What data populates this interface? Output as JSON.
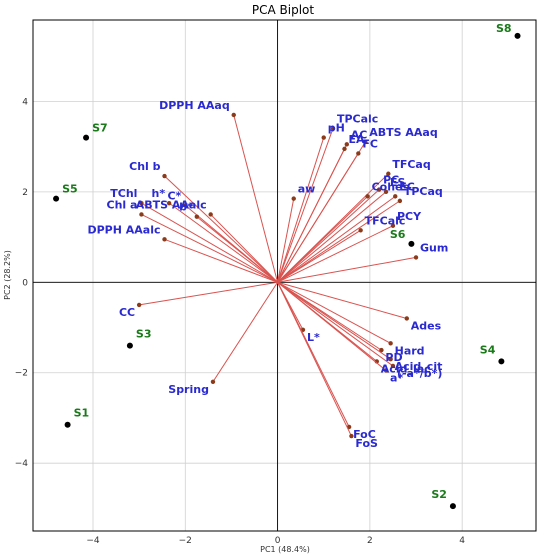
{
  "chart_data": {
    "type": "scatter",
    "title": "PCA Biplot",
    "xlabel": "PC1 (48.4%)",
    "ylabel": "PC2 (28.2%)",
    "xlim": [
      -5.3,
      5.6
    ],
    "ylim": [
      -5.5,
      5.8
    ],
    "xticks": [
      -4,
      -2,
      0,
      2,
      4
    ],
    "yticks": [
      -4,
      -2,
      0,
      2,
      4
    ],
    "grid": true,
    "colors": {
      "arrow": "#d9534f",
      "tip": "#8b3a1a",
      "var_label": "#2a2ad0",
      "obs_label": "#1a7a1a",
      "obs_point": "#000000"
    },
    "variables": [
      {
        "name": "DPPH AAaq",
        "x": -0.95,
        "y": 3.7
      },
      {
        "name": "TPCalc",
        "x": 1.2,
        "y": 3.4
      },
      {
        "name": "pH",
        "x": 1.0,
        "y": 3.2
      },
      {
        "name": "AC",
        "x": 1.5,
        "y": 3.05
      },
      {
        "name": "ABTS AAaq",
        "x": 1.9,
        "y": 3.1
      },
      {
        "name": "EA",
        "x": 1.45,
        "y": 2.95
      },
      {
        "name": "FC",
        "x": 1.75,
        "y": 2.85
      },
      {
        "name": "TFCaq",
        "x": 2.4,
        "y": 2.4
      },
      {
        "name": "aw",
        "x": 0.35,
        "y": 1.85
      },
      {
        "name": "Cohes",
        "x": 1.95,
        "y": 1.9
      },
      {
        "name": "PC",
        "x": 2.2,
        "y": 2.05
      },
      {
        "name": "ES",
        "x": 2.35,
        "y": 2.0
      },
      {
        "name": "EC",
        "x": 2.55,
        "y": 1.9
      },
      {
        "name": "TPCaq",
        "x": 2.65,
        "y": 1.8
      },
      {
        "name": "PCY",
        "x": 2.5,
        "y": 1.25
      },
      {
        "name": "TFCalc",
        "x": 1.8,
        "y": 1.15
      },
      {
        "name": "Gum",
        "x": 3.0,
        "y": 0.55
      },
      {
        "name": "Chl b",
        "x": -2.45,
        "y": 2.35
      },
      {
        "name": "h*",
        "x": -2.35,
        "y": 1.75
      },
      {
        "name": "C*",
        "x": -2.0,
        "y": 1.7
      },
      {
        "name": "b*",
        "x": -1.75,
        "y": 1.45
      },
      {
        "name": "ABTS AAalc",
        "x": -1.45,
        "y": 1.5
      },
      {
        "name": "TChl",
        "x": -2.95,
        "y": 1.75
      },
      {
        "name": "Chl a",
        "x": -2.95,
        "y": 1.5
      },
      {
        "name": "DPPH AAalc",
        "x": -2.45,
        "y": 0.95
      },
      {
        "name": "CC",
        "x": -3.0,
        "y": -0.5
      },
      {
        "name": "L*",
        "x": 0.55,
        "y": -1.05
      },
      {
        "name": "Spring",
        "x": -1.4,
        "y": -2.2
      },
      {
        "name": "Ades",
        "x": 2.8,
        "y": -0.8
      },
      {
        "name": "Hard",
        "x": 2.45,
        "y": -1.35
      },
      {
        "name": "PD",
        "x": 2.25,
        "y": -1.5
      },
      {
        "name": "Acid_cit",
        "x": 2.45,
        "y": -1.7
      },
      {
        "name": "Acid_lac",
        "x": 2.15,
        "y": -1.75
      },
      {
        "name": "(-a*/b*)",
        "x": 2.5,
        "y": -1.85
      },
      {
        "name": "a*",
        "x": 2.35,
        "y": -1.95
      },
      {
        "name": "FoC",
        "x": 1.55,
        "y": -3.2
      },
      {
        "name": "FoS",
        "x": 1.6,
        "y": -3.4
      }
    ],
    "observations": [
      {
        "name": "S1",
        "x": -4.55,
        "y": -3.15
      },
      {
        "name": "S2",
        "x": 3.8,
        "y": -4.95
      },
      {
        "name": "S3",
        "x": -3.2,
        "y": -1.4
      },
      {
        "name": "S4",
        "x": 4.85,
        "y": -1.75
      },
      {
        "name": "S5",
        "x": -4.8,
        "y": 1.85
      },
      {
        "name": "S6",
        "x": 2.9,
        "y": 0.85
      },
      {
        "name": "S7",
        "x": -4.15,
        "y": 3.2
      },
      {
        "name": "S8",
        "x": 5.2,
        "y": 5.45
      }
    ]
  }
}
